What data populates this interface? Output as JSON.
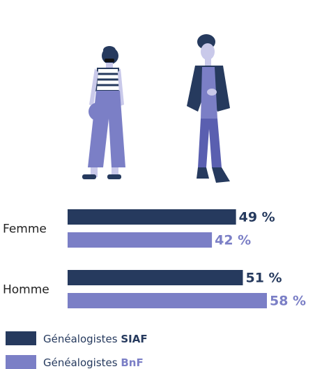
{
  "chart_data": {
    "type": "bar",
    "orientation": "horizontal",
    "categories": [
      "Femme",
      "Homme"
    ],
    "series": [
      {
        "name": "Généalogistes SIAF",
        "color": "#263a5e",
        "values": [
          49,
          51
        ],
        "value_labels": [
          "49 %",
          "51 %"
        ]
      },
      {
        "name": "Généalogistes BnF",
        "color": "#7b7fc6",
        "values": [
          42,
          58
        ],
        "value_labels": [
          "42 %",
          "58 %"
        ]
      }
    ]
  }
}
